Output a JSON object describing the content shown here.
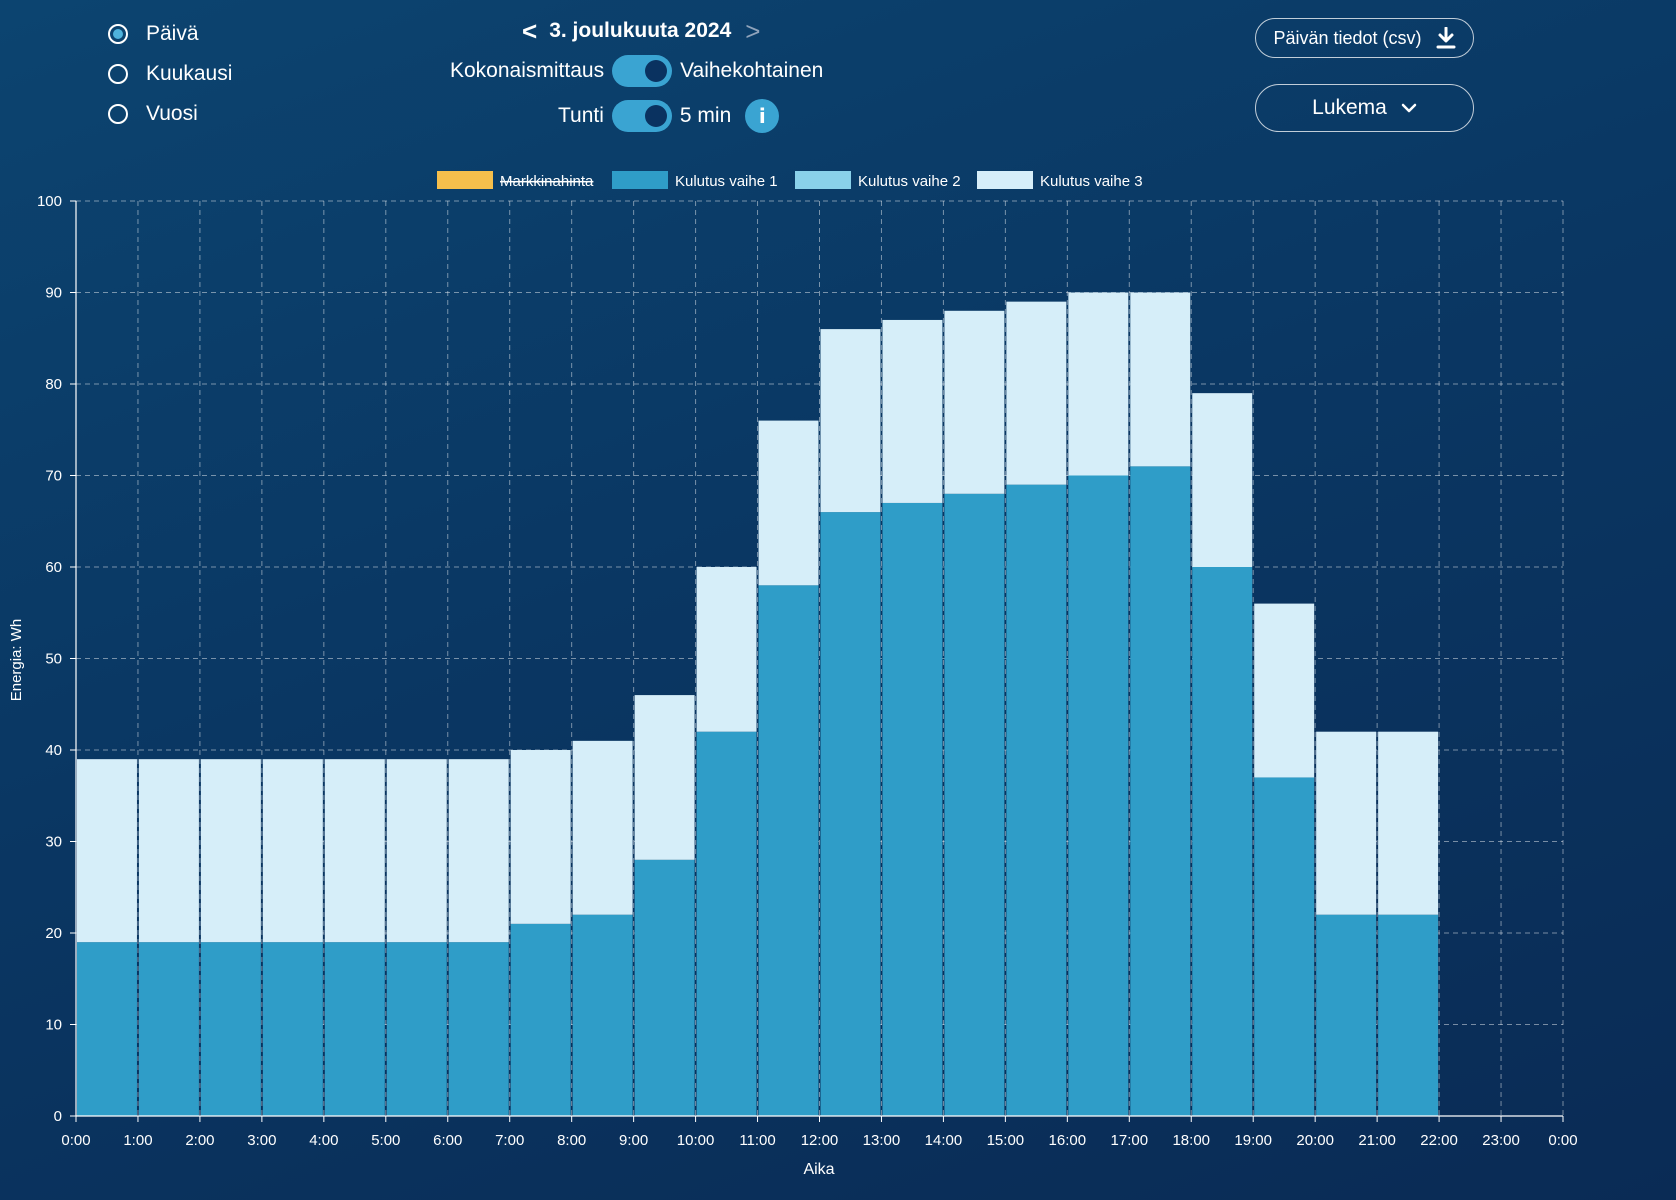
{
  "period_options": [
    {
      "label": "Päivä",
      "selected": true
    },
    {
      "label": "Kuukausi",
      "selected": false
    },
    {
      "label": "Vuosi",
      "selected": false
    }
  ],
  "date_nav": {
    "prev": "<",
    "label": "3. joulukuuta 2024",
    "next": ">"
  },
  "toggles": {
    "measurement": {
      "left": "Kokonaismittaus",
      "right": "Vaihekohtainen"
    },
    "resolution": {
      "left": "Tunti",
      "right": "5 min"
    },
    "info_icon": "i"
  },
  "buttons": {
    "csv": "Päivän tiedot (csv)",
    "csv_icon": "download-icon",
    "lukema": "Lukema",
    "lukema_icon": "chevron-down-icon"
  },
  "colors": {
    "phase1": "#2f9dc8",
    "phase2": "#8ad1ea",
    "phase3": "#d6eef9",
    "market": "#f6bf4c"
  },
  "chart_data": {
    "type": "bar",
    "stacked": true,
    "xlabel": "Aika",
    "ylabel": "Energia: Wh",
    "ylim": [
      0,
      100
    ],
    "y_ticks": [
      0,
      10,
      20,
      30,
      40,
      50,
      60,
      70,
      80,
      90,
      100
    ],
    "x_ticks": [
      "0:00",
      "1:00",
      "2:00",
      "3:00",
      "4:00",
      "5:00",
      "6:00",
      "7:00",
      "8:00",
      "9:00",
      "10:00",
      "11:00",
      "12:00",
      "13:00",
      "14:00",
      "15:00",
      "16:00",
      "17:00",
      "18:00",
      "19:00",
      "20:00",
      "21:00",
      "22:00",
      "23:00",
      "0:00"
    ],
    "interval": "5 min",
    "grid": true,
    "legend_position": "top",
    "legend": [
      {
        "name": "Markkinahinta",
        "disabled": true
      },
      {
        "name": "Kulutus vaihe 1"
      },
      {
        "name": "Kulutus vaihe 2"
      },
      {
        "name": "Kulutus vaihe 3"
      }
    ],
    "hourly": [
      {
        "hour": "0:00",
        "phase1": 19,
        "total": 39
      },
      {
        "hour": "1:00",
        "phase1": 19,
        "total": 39
      },
      {
        "hour": "2:00",
        "phase1": 19,
        "total": 39
      },
      {
        "hour": "3:00",
        "phase1": 19,
        "total": 39
      },
      {
        "hour": "4:00",
        "phase1": 19,
        "total": 39
      },
      {
        "hour": "5:00",
        "phase1": 19,
        "total": 39
      },
      {
        "hour": "6:00",
        "phase1": 19,
        "total": 39
      },
      {
        "hour": "7:00",
        "phase1": 21,
        "total": 40
      },
      {
        "hour": "8:00",
        "phase1": 22,
        "total": 41
      },
      {
        "hour": "9:00",
        "phase1": 28,
        "total": 46
      },
      {
        "hour": "10:00",
        "phase1": 42,
        "total": 60
      },
      {
        "hour": "11:00",
        "phase1": 58,
        "total": 76
      },
      {
        "hour": "12:00",
        "phase1": 66,
        "total": 86
      },
      {
        "hour": "13:00",
        "phase1": 67,
        "total": 87
      },
      {
        "hour": "14:00",
        "phase1": 68,
        "total": 88
      },
      {
        "hour": "15:00",
        "phase1": 69,
        "total": 89
      },
      {
        "hour": "16:00",
        "phase1": 70,
        "total": 90
      },
      {
        "hour": "17:00",
        "phase1": 71,
        "total": 90
      },
      {
        "hour": "18:00",
        "phase1": 60,
        "total": 79
      },
      {
        "hour": "19:00",
        "phase1": 37,
        "total": 56
      },
      {
        "hour": "20:00",
        "phase1": 22,
        "total": 42
      },
      {
        "hour": "21:00",
        "phase1": 22,
        "total": 42
      },
      {
        "hour": "22:00",
        "phase1": null,
        "total": null
      },
      {
        "hour": "23:00",
        "phase1": null,
        "total": null
      }
    ]
  }
}
